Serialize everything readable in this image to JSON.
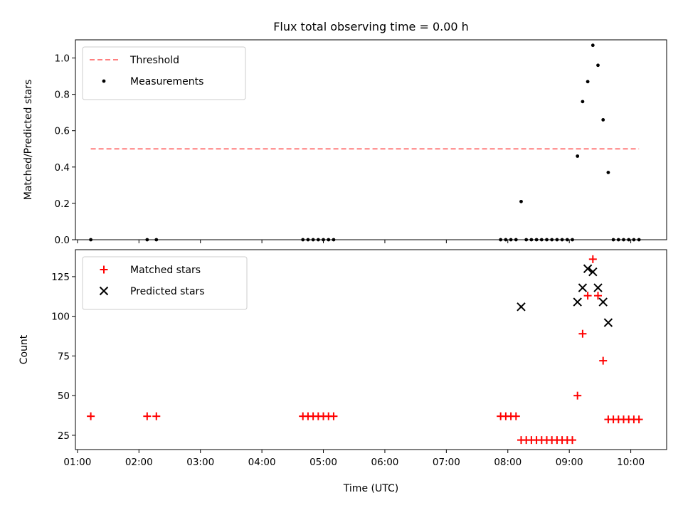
{
  "chart_data": [
    {
      "type": "scatter",
      "title": "Flux total observing time = 0.00 h",
      "xlabel": "",
      "ylabel": "Matched/Predicted stars",
      "xlim": [
        "00:58",
        "10:35"
      ],
      "ylim": [
        0,
        1.1
      ],
      "x_ticks": [
        "01:00",
        "02:00",
        "03:00",
        "04:00",
        "05:00",
        "06:00",
        "07:00",
        "08:00",
        "09:00",
        "10:00"
      ],
      "x_tick_labels_shown": false,
      "y_ticks": [
        "0.0",
        "0.2",
        "0.4",
        "0.6",
        "0.8",
        "1.0"
      ],
      "grid": false,
      "legend_position": "upper-left",
      "threshold": {
        "name": "Threshold",
        "value": 0.5,
        "x_start": "01:13",
        "x_end": "10:08",
        "color": "#ff7f7f",
        "style": "dashed"
      },
      "series": [
        {
          "name": "Measurements",
          "color": "#000000",
          "marker": "dot",
          "points": [
            [
              "01:13",
              0
            ],
            [
              "02:08",
              0
            ],
            [
              "02:17",
              0
            ],
            [
              "04:40",
              0
            ],
            [
              "04:45",
              0
            ],
            [
              "04:50",
              0
            ],
            [
              "04:55",
              0
            ],
            [
              "05:00",
              0
            ],
            [
              "05:05",
              0
            ],
            [
              "05:10",
              0
            ],
            [
              "07:53",
              0
            ],
            [
              "07:58",
              0
            ],
            [
              "08:03",
              0
            ],
            [
              "08:08",
              0
            ],
            [
              "08:13",
              0.21
            ],
            [
              "08:18",
              0
            ],
            [
              "08:23",
              0
            ],
            [
              "08:28",
              0
            ],
            [
              "08:33",
              0
            ],
            [
              "08:38",
              0
            ],
            [
              "08:43",
              0
            ],
            [
              "08:48",
              0
            ],
            [
              "08:53",
              0
            ],
            [
              "08:58",
              0
            ],
            [
              "09:03",
              0
            ],
            [
              "09:08",
              0.46
            ],
            [
              "09:13",
              0.76
            ],
            [
              "09:18",
              0.87
            ],
            [
              "09:23",
              1.07
            ],
            [
              "09:28",
              0.96
            ],
            [
              "09:33",
              0.66
            ],
            [
              "09:38",
              0.37
            ],
            [
              "09:43",
              0
            ],
            [
              "09:48",
              0
            ],
            [
              "09:53",
              0
            ],
            [
              "09:58",
              0
            ],
            [
              "10:03",
              0
            ],
            [
              "10:08",
              0
            ]
          ]
        }
      ]
    },
    {
      "type": "scatter",
      "title": "",
      "xlabel": "Time (UTC)",
      "ylabel": "Count",
      "xlim": [
        "00:58",
        "10:35"
      ],
      "ylim": [
        16,
        142
      ],
      "x_ticks": [
        "01:00",
        "02:00",
        "03:00",
        "04:00",
        "05:00",
        "06:00",
        "07:00",
        "08:00",
        "09:00",
        "10:00"
      ],
      "x_tick_labels_shown": true,
      "y_ticks": [
        "25",
        "50",
        "75",
        "100",
        "125"
      ],
      "grid": false,
      "legend_position": "upper-left",
      "series": [
        {
          "name": "Matched stars",
          "color": "#ff0000",
          "marker": "plus",
          "points": [
            [
              "01:13",
              37
            ],
            [
              "02:08",
              37
            ],
            [
              "02:17",
              37
            ],
            [
              "04:40",
              37
            ],
            [
              "04:45",
              37
            ],
            [
              "04:50",
              37
            ],
            [
              "04:55",
              37
            ],
            [
              "05:00",
              37
            ],
            [
              "05:05",
              37
            ],
            [
              "05:10",
              37
            ],
            [
              "07:53",
              37
            ],
            [
              "07:58",
              37
            ],
            [
              "08:03",
              37
            ],
            [
              "08:08",
              37
            ],
            [
              "08:13",
              22
            ],
            [
              "08:18",
              22
            ],
            [
              "08:23",
              22
            ],
            [
              "08:28",
              22
            ],
            [
              "08:33",
              22
            ],
            [
              "08:38",
              22
            ],
            [
              "08:43",
              22
            ],
            [
              "08:48",
              22
            ],
            [
              "08:53",
              22
            ],
            [
              "08:58",
              22
            ],
            [
              "09:03",
              22
            ],
            [
              "09:08",
              50
            ],
            [
              "09:13",
              89
            ],
            [
              "09:18",
              113
            ],
            [
              "09:23",
              136
            ],
            [
              "09:28",
              113
            ],
            [
              "09:33",
              72
            ],
            [
              "09:38",
              35
            ],
            [
              "09:43",
              35
            ],
            [
              "09:48",
              35
            ],
            [
              "09:53",
              35
            ],
            [
              "09:58",
              35
            ],
            [
              "10:03",
              35
            ],
            [
              "10:08",
              35
            ]
          ]
        },
        {
          "name": "Predicted stars",
          "color": "#000000",
          "marker": "x",
          "points": [
            [
              "08:13",
              106
            ],
            [
              "09:08",
              109
            ],
            [
              "09:13",
              118
            ],
            [
              "09:18",
              130
            ],
            [
              "09:23",
              128
            ],
            [
              "09:28",
              118
            ],
            [
              "09:33",
              109
            ],
            [
              "09:38",
              96
            ]
          ]
        }
      ]
    }
  ]
}
